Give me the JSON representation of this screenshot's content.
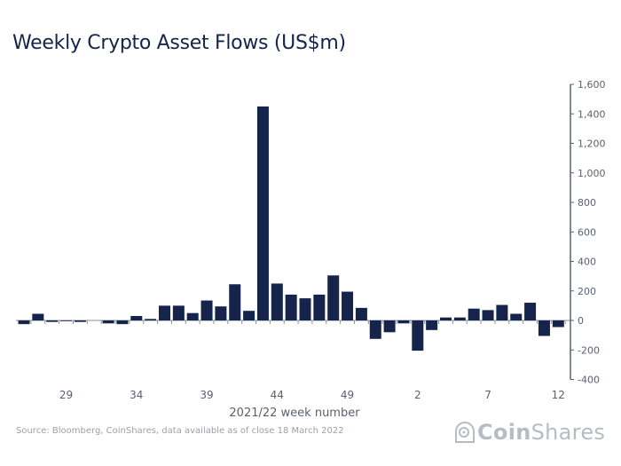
{
  "chart_data": {
    "type": "bar",
    "title": "Weekly Crypto Asset Flows (US$m)",
    "xlabel": "2021/22 week number",
    "ylabel": "",
    "ylim": [
      -400,
      1600
    ],
    "yticks": [
      "1,600",
      "1,400",
      "1,200",
      "1,000",
      "800",
      "600",
      "400",
      "200",
      "0",
      "-200",
      "-400"
    ],
    "ytick_values": [
      1600,
      1400,
      1200,
      1000,
      800,
      600,
      400,
      200,
      0,
      -200,
      -400
    ],
    "xtick_labels": [
      "29",
      "34",
      "39",
      "44",
      "49",
      "2",
      "7",
      "12"
    ],
    "categories": [
      "26",
      "27",
      "28",
      "29",
      "30",
      "31",
      "32",
      "33",
      "34",
      "35",
      "36",
      "37",
      "38",
      "39",
      "40",
      "41",
      "42",
      "43",
      "44",
      "45",
      "46",
      "47",
      "48",
      "49",
      "50",
      "51",
      "52",
      "1",
      "2",
      "3",
      "4",
      "5",
      "6",
      "7",
      "8",
      "9",
      "10",
      "11",
      "12"
    ],
    "values": [
      -25,
      45,
      -10,
      -5,
      -10,
      0,
      -20,
      -25,
      30,
      10,
      100,
      100,
      50,
      135,
      95,
      245,
      65,
      1450,
      250,
      175,
      150,
      175,
      305,
      195,
      85,
      -125,
      -80,
      -20,
      -205,
      -65,
      20,
      20,
      80,
      70,
      105,
      45,
      120,
      -105,
      -45
    ],
    "bar_color": "#14244a",
    "axis_position": "right",
    "grid": false
  },
  "source": "Source: Bloomberg, CoinShares, data available as of close 18 March 2022",
  "logo": {
    "text_bold": "Coin",
    "text_regular": "Shares"
  }
}
